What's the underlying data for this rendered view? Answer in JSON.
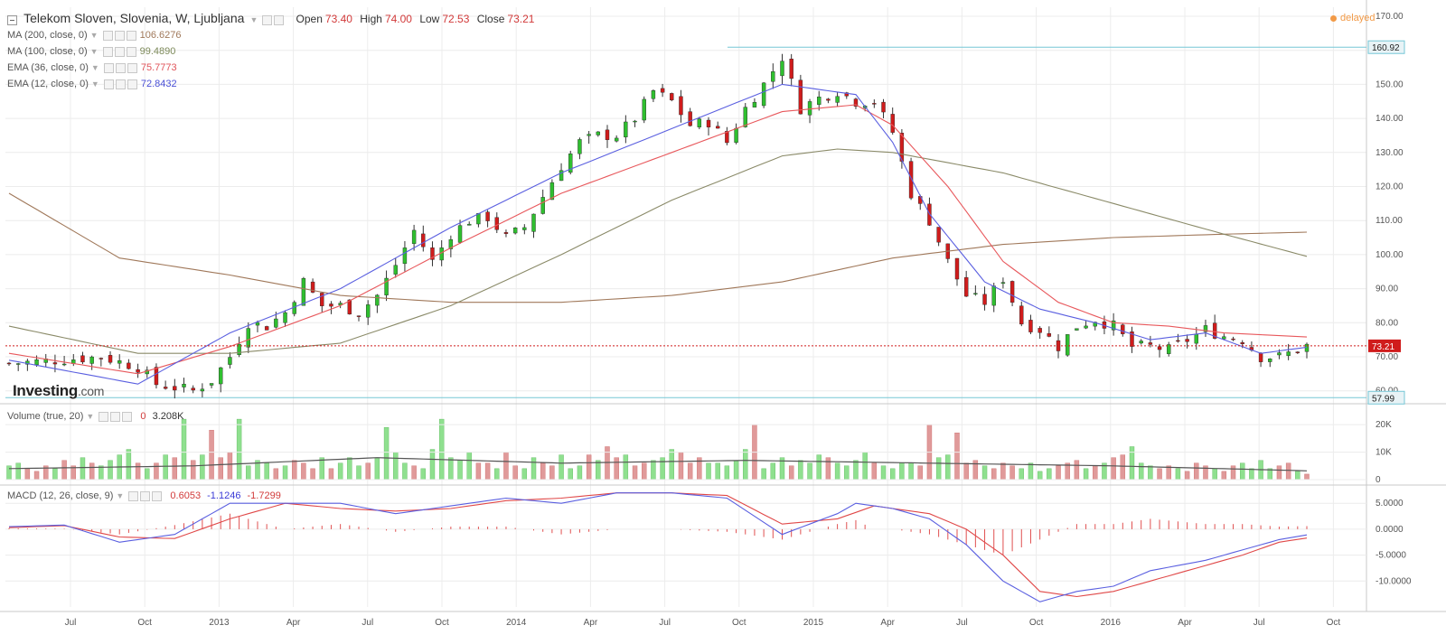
{
  "header": {
    "title": "Telekom Sloven, Slovenia, W, Ljubljana",
    "open_label": "Open",
    "open": "73.40",
    "high_label": "High",
    "high": "74.00",
    "low_label": "Low",
    "low": "72.53",
    "close_label": "Close",
    "close": "73.21",
    "delayed": "delayed"
  },
  "indicators": [
    {
      "label": "MA (200, close, 0)",
      "value": "106.6276",
      "color": "#a0785a"
    },
    {
      "label": "MA (100, close, 0)",
      "value": "99.4890",
      "color": "#7d8a5a"
    },
    {
      "label": "EMA (36, close, 0)",
      "value": "75.7773",
      "color": "#e0545a"
    },
    {
      "label": "EMA (12, close, 0)",
      "value": "72.8432",
      "color": "#4a50d6"
    }
  ],
  "logo": {
    "name": "Investing",
    "suffix": ".com"
  },
  "volume_legend": {
    "label": "Volume (true, 20)",
    "v1": "0",
    "v2": "3.208K"
  },
  "macd_legend": {
    "label": "MACD (12, 26, close, 9)",
    "v1": "0.6053",
    "v2": "-1.1246",
    "v3": "-1.7299"
  },
  "colors": {
    "up": "#2fbf2f",
    "down": "#d01c1c",
    "vol_up": "#8fe08f",
    "vol_down": "#e09a9a",
    "hline": "#76c7d6",
    "lastprice": "#d01c1c"
  },
  "chart_data": {
    "type": "candlestick",
    "price_axis": {
      "min": 57,
      "max": 170,
      "ticks": [
        "170.00",
        "160.00",
        "150.00",
        "140.00",
        "130.00",
        "120.00",
        "110.00",
        "100.00",
        "90.00",
        "80.00",
        "70.00",
        "60.00"
      ]
    },
    "horizontal_lines": [
      {
        "value": 160.92,
        "label": "160.92"
      },
      {
        "value": 57.99,
        "label": "57.99"
      }
    ],
    "last_price": {
      "value": 73.21,
      "label": "73.21"
    },
    "x_axis_labels": [
      "Jul",
      "Oct",
      "2013",
      "Apr",
      "Jul",
      "Oct",
      "2014",
      "Apr",
      "Jul",
      "Oct",
      "2015",
      "Apr",
      "Jul",
      "Oct",
      "2016",
      "Apr",
      "Jul",
      "Oct"
    ],
    "close_series": [
      [
        0,
        68
      ],
      [
        10,
        70
      ],
      [
        14,
        67
      ],
      [
        16,
        62
      ],
      [
        20,
        60
      ],
      [
        22,
        63
      ],
      [
        24,
        70
      ],
      [
        26,
        80
      ],
      [
        28,
        79
      ],
      [
        30,
        83
      ],
      [
        32,
        92
      ],
      [
        34,
        85
      ],
      [
        36,
        85
      ],
      [
        38,
        83
      ],
      [
        40,
        88
      ],
      [
        42,
        97
      ],
      [
        44,
        107
      ],
      [
        46,
        98
      ],
      [
        48,
        106
      ],
      [
        50,
        110
      ],
      [
        52,
        111
      ],
      [
        54,
        105
      ],
      [
        56,
        108
      ],
      [
        58,
        117
      ],
      [
        60,
        126
      ],
      [
        62,
        133
      ],
      [
        64,
        135
      ],
      [
        66,
        135
      ],
      [
        68,
        140
      ],
      [
        70,
        148
      ],
      [
        72,
        145
      ],
      [
        74,
        138
      ],
      [
        76,
        139
      ],
      [
        78,
        133
      ],
      [
        80,
        143
      ],
      [
        82,
        150
      ],
      [
        84,
        158
      ],
      [
        86,
        143
      ],
      [
        88,
        146
      ],
      [
        90,
        148
      ],
      [
        92,
        145
      ],
      [
        94,
        145
      ],
      [
        96,
        136
      ],
      [
        98,
        118
      ],
      [
        100,
        110
      ],
      [
        102,
        98
      ],
      [
        104,
        88
      ],
      [
        106,
        86
      ],
      [
        108,
        93
      ],
      [
        110,
        80
      ],
      [
        112,
        78
      ],
      [
        114,
        73
      ],
      [
        116,
        79
      ],
      [
        118,
        81
      ],
      [
        120,
        79
      ],
      [
        122,
        73
      ],
      [
        124,
        73
      ],
      [
        126,
        72
      ],
      [
        128,
        75
      ],
      [
        130,
        78
      ],
      [
        132,
        76
      ],
      [
        134,
        75
      ],
      [
        136,
        70
      ],
      [
        138,
        70
      ],
      [
        140,
        72
      ],
      [
        141,
        73.21
      ]
    ],
    "ma200_series": [
      [
        0,
        118
      ],
      [
        12,
        99
      ],
      [
        24,
        94
      ],
      [
        36,
        88
      ],
      [
        48,
        86
      ],
      [
        60,
        86
      ],
      [
        72,
        88
      ],
      [
        84,
        92
      ],
      [
        96,
        99
      ],
      [
        108,
        103
      ],
      [
        120,
        105
      ],
      [
        132,
        106
      ],
      [
        141,
        106.6
      ]
    ],
    "ma100_series": [
      [
        0,
        79
      ],
      [
        14,
        71
      ],
      [
        24,
        71
      ],
      [
        36,
        74
      ],
      [
        48,
        85
      ],
      [
        60,
        100
      ],
      [
        72,
        116
      ],
      [
        84,
        129
      ],
      [
        90,
        131
      ],
      [
        96,
        130
      ],
      [
        108,
        124
      ],
      [
        120,
        115
      ],
      [
        132,
        106
      ],
      [
        141,
        99.5
      ]
    ],
    "ema36_series": [
      [
        0,
        71
      ],
      [
        14,
        65
      ],
      [
        24,
        73
      ],
      [
        36,
        85
      ],
      [
        48,
        102
      ],
      [
        60,
        118
      ],
      [
        72,
        130
      ],
      [
        84,
        142
      ],
      [
        92,
        144
      ],
      [
        96,
        138
      ],
      [
        102,
        120
      ],
      [
        108,
        98
      ],
      [
        114,
        86
      ],
      [
        120,
        80
      ],
      [
        126,
        79
      ],
      [
        132,
        77
      ],
      [
        141,
        75.8
      ]
    ],
    "ema12_series": [
      [
        0,
        69
      ],
      [
        14,
        62
      ],
      [
        24,
        77
      ],
      [
        36,
        90
      ],
      [
        48,
        108
      ],
      [
        60,
        124
      ],
      [
        72,
        137
      ],
      [
        84,
        150
      ],
      [
        92,
        147
      ],
      [
        96,
        133
      ],
      [
        100,
        112
      ],
      [
        106,
        92
      ],
      [
        112,
        84
      ],
      [
        118,
        80
      ],
      [
        124,
        75
      ],
      [
        130,
        77
      ],
      [
        136,
        71
      ],
      [
        141,
        72.8
      ]
    ],
    "volume_axis": {
      "max": 24,
      "ticks": [
        "20K",
        "10K",
        "0"
      ]
    },
    "volume_values": [
      5,
      6,
      4,
      3,
      5,
      4,
      7,
      5,
      8,
      6,
      5,
      7,
      9,
      11,
      6,
      4,
      6,
      9,
      8,
      22,
      7,
      9,
      18,
      8,
      10,
      22,
      5,
      7,
      6,
      4,
      5,
      7,
      6,
      4,
      8,
      4,
      6,
      8,
      5,
      6,
      8,
      19,
      10,
      6,
      5,
      4,
      11,
      22,
      8,
      7,
      10,
      6,
      6,
      4,
      10,
      5,
      4,
      8,
      6,
      5,
      9,
      4,
      5,
      9,
      7,
      12,
      8,
      9,
      5,
      6,
      7,
      8,
      11,
      10,
      6,
      8,
      6,
      6,
      5,
      7,
      11,
      20,
      4,
      6,
      8,
      5,
      7,
      6,
      9,
      8,
      6,
      5,
      7,
      10,
      6,
      5,
      4,
      6,
      6,
      5,
      20,
      8,
      9,
      17,
      6,
      7,
      5,
      4,
      6,
      5,
      4,
      6,
      3,
      4,
      5,
      6,
      7,
      4,
      5,
      6,
      8,
      9,
      12,
      6,
      5,
      4,
      5,
      4,
      3,
      6,
      5,
      4,
      3,
      5,
      6,
      4,
      7,
      4,
      5,
      6,
      3,
      2
    ],
    "volume_ma_series": [
      [
        0,
        4
      ],
      [
        20,
        5
      ],
      [
        40,
        8
      ],
      [
        60,
        6
      ],
      [
        80,
        7
      ],
      [
        100,
        6
      ],
      [
        120,
        5
      ],
      [
        141,
        3.2
      ]
    ],
    "macd_axis": {
      "min": -15,
      "max": 8,
      "ticks": [
        "5.0000",
        "0.0000",
        "-5.0000",
        "-10.0000"
      ]
    },
    "macd_series": [
      [
        0,
        0.5
      ],
      [
        6,
        0.8
      ],
      [
        12,
        -2.5
      ],
      [
        18,
        -1
      ],
      [
        24,
        5
      ],
      [
        30,
        5
      ],
      [
        36,
        5
      ],
      [
        42,
        3
      ],
      [
        48,
        4.5
      ],
      [
        54,
        6
      ],
      [
        60,
        5
      ],
      [
        66,
        7
      ],
      [
        72,
        7
      ],
      [
        78,
        6
      ],
      [
        84,
        -1
      ],
      [
        90,
        3
      ],
      [
        92,
        5
      ],
      [
        96,
        4
      ],
      [
        100,
        2
      ],
      [
        104,
        -3
      ],
      [
        108,
        -10
      ],
      [
        112,
        -14
      ],
      [
        116,
        -12
      ],
      [
        120,
        -11
      ],
      [
        124,
        -8
      ],
      [
        130,
        -6
      ],
      [
        134,
        -4
      ],
      [
        138,
        -2
      ],
      [
        141,
        -1.1
      ]
    ],
    "signal_series": [
      [
        0,
        0.3
      ],
      [
        6,
        0.7
      ],
      [
        12,
        -1.5
      ],
      [
        18,
        -1.8
      ],
      [
        24,
        2
      ],
      [
        30,
        5
      ],
      [
        36,
        4
      ],
      [
        42,
        3.5
      ],
      [
        48,
        4
      ],
      [
        54,
        5.5
      ],
      [
        60,
        6
      ],
      [
        66,
        7
      ],
      [
        72,
        7
      ],
      [
        78,
        6.5
      ],
      [
        84,
        1
      ],
      [
        90,
        2
      ],
      [
        94,
        4.5
      ],
      [
        100,
        3
      ],
      [
        104,
        0
      ],
      [
        108,
        -5
      ],
      [
        112,
        -12
      ],
      [
        116,
        -13
      ],
      [
        120,
        -12
      ],
      [
        124,
        -10
      ],
      [
        130,
        -7
      ],
      [
        134,
        -5
      ],
      [
        138,
        -2.5
      ],
      [
        141,
        -1.7
      ]
    ]
  }
}
